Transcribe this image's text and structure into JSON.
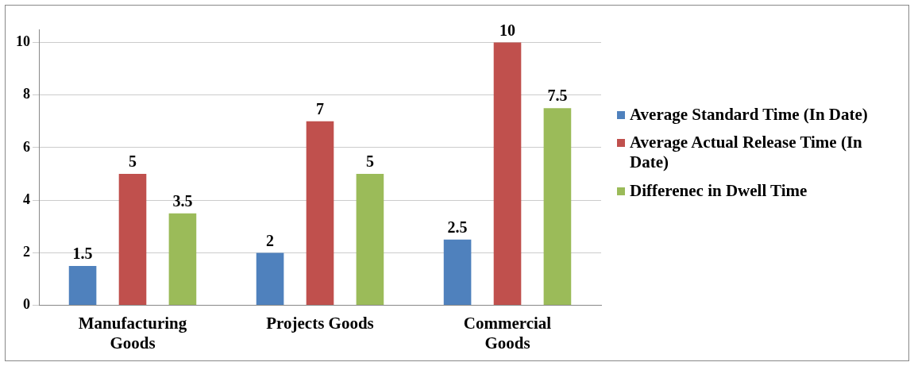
{
  "chart_data": {
    "type": "bar",
    "categories": [
      "Manufacturing Goods",
      "Projects Goods",
      "Commercial Goods"
    ],
    "series": [
      {
        "name": "Average Standard Time (In Date)",
        "color": "#4f81bd",
        "values": [
          1.5,
          2,
          2.5
        ]
      },
      {
        "name": "Average Actual Release Time (In Date)",
        "color": "#c0504d",
        "values": [
          5,
          7,
          10
        ]
      },
      {
        "name": "Differenec in Dwell Time",
        "color": "#9bbb59",
        "values": [
          3.5,
          5,
          7.5
        ]
      }
    ],
    "ylim": [
      0,
      10.5
    ],
    "yticks": [
      0,
      2,
      4,
      6,
      8,
      10
    ],
    "grid": "y",
    "legend": "right",
    "data_labels": true
  }
}
